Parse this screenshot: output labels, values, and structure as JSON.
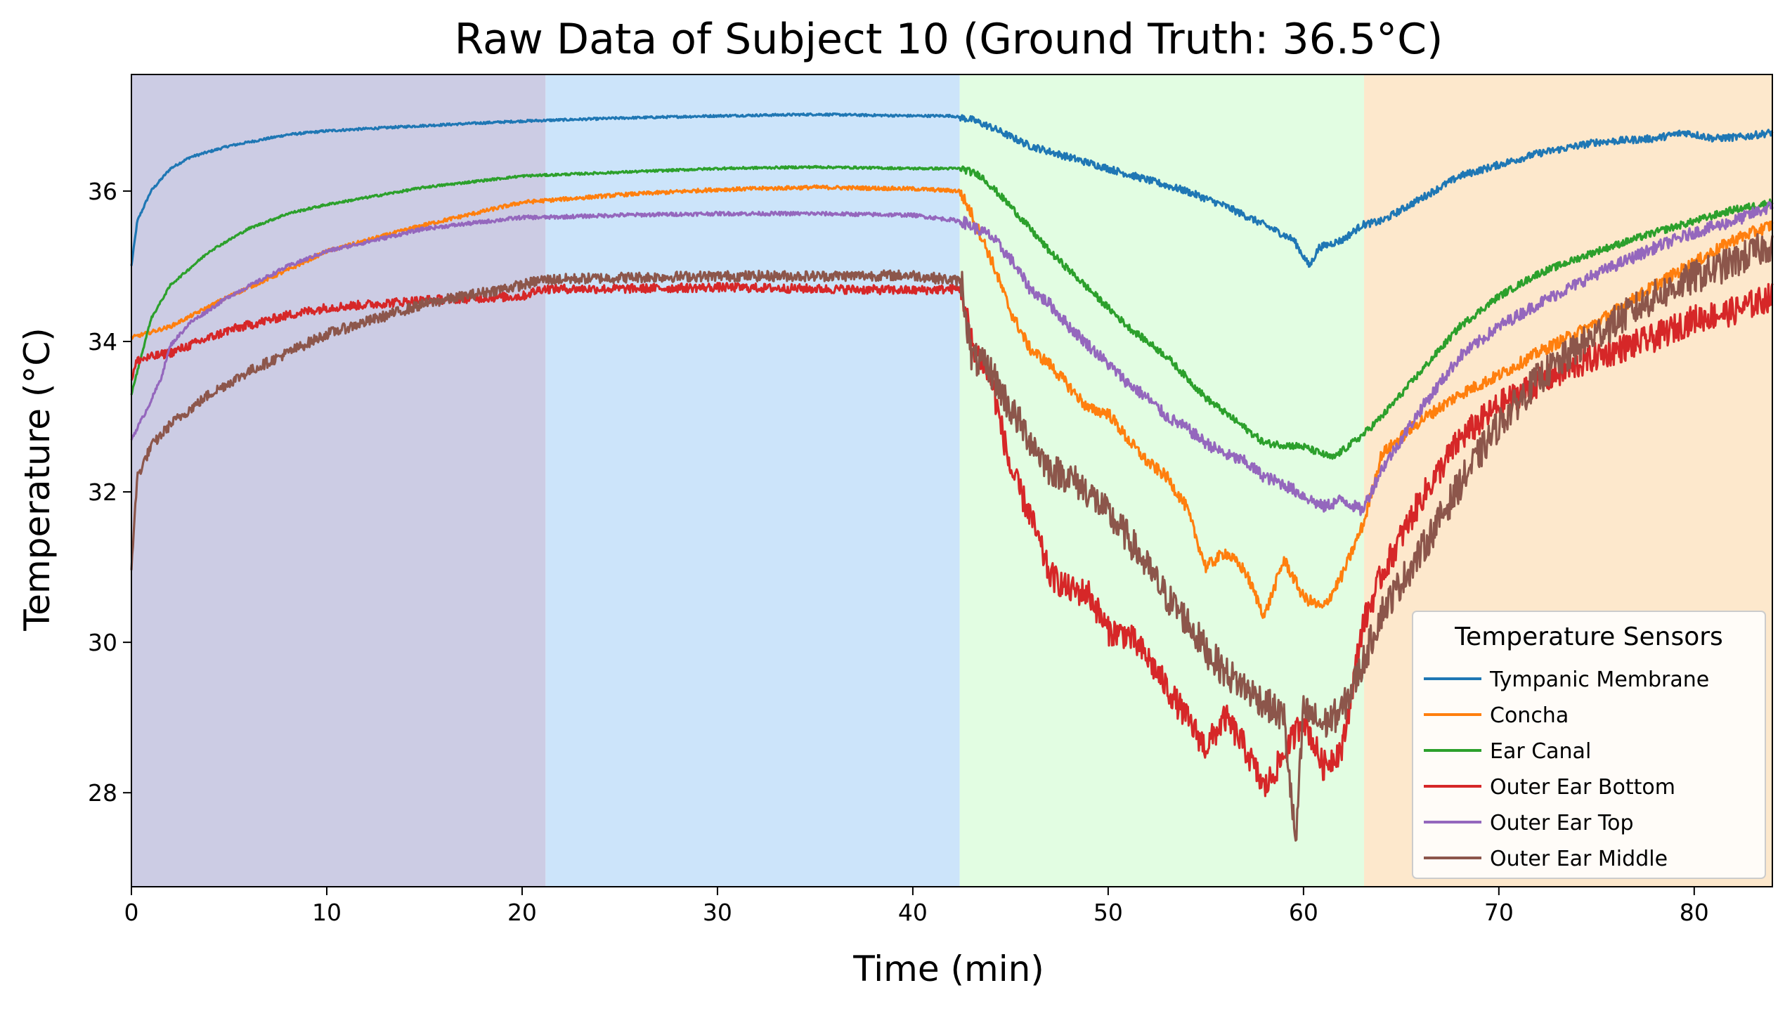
{
  "chart_data": {
    "type": "line",
    "title": "Raw Data of Subject 10 (Ground Truth: 36.5°C)",
    "xlabel": "Time (min)",
    "ylabel": "Temperature (°C)",
    "xlim": [
      0,
      84
    ],
    "ylim": [
      26.75,
      37.55
    ],
    "xticks": [
      0,
      10,
      20,
      30,
      40,
      50,
      60,
      70,
      80
    ],
    "yticks": [
      28,
      30,
      32,
      34,
      36
    ],
    "grid": false,
    "legend": {
      "title": "Temperature Sensors",
      "placement": "lower-right"
    },
    "phases": [
      {
        "start": 0,
        "end": 21.2,
        "color": "#cccce4"
      },
      {
        "start": 21.2,
        "end": 42.4,
        "color": "#cce4fa"
      },
      {
        "start": 42.4,
        "end": 63.1,
        "color": "#e2fde2"
      },
      {
        "start": 63.1,
        "end": 84,
        "color": "#fde8cc"
      }
    ],
    "series": [
      {
        "name": "Tympanic Membrane",
        "color": "#1f77b4",
        "noise": 0.03,
        "points": [
          [
            0,
            35.0
          ],
          [
            0.3,
            35.6
          ],
          [
            1,
            36.0
          ],
          [
            2,
            36.3
          ],
          [
            3,
            36.45
          ],
          [
            5,
            36.6
          ],
          [
            8,
            36.75
          ],
          [
            10,
            36.8
          ],
          [
            15,
            36.87
          ],
          [
            20,
            36.93
          ],
          [
            25,
            36.97
          ],
          [
            30,
            37.0
          ],
          [
            35,
            37.02
          ],
          [
            40,
            37.0
          ],
          [
            42,
            37.0
          ],
          [
            43,
            36.95
          ],
          [
            44,
            36.85
          ],
          [
            46,
            36.6
          ],
          [
            48,
            36.45
          ],
          [
            50,
            36.3
          ],
          [
            52,
            36.15
          ],
          [
            54,
            36.0
          ],
          [
            56,
            35.8
          ],
          [
            58,
            35.55
          ],
          [
            59.5,
            35.35
          ],
          [
            60.3,
            35.0
          ],
          [
            60.8,
            35.25
          ],
          [
            62,
            35.35
          ],
          [
            63,
            35.55
          ],
          [
            64,
            35.6
          ],
          [
            66,
            35.9
          ],
          [
            68,
            36.2
          ],
          [
            70,
            36.35
          ],
          [
            72,
            36.5
          ],
          [
            75,
            36.65
          ],
          [
            78,
            36.7
          ],
          [
            79.5,
            36.78
          ],
          [
            81,
            36.7
          ],
          [
            82.5,
            36.72
          ],
          [
            84,
            36.78
          ]
        ]
      },
      {
        "name": "Concha",
        "color": "#ff7f0e",
        "noise": 0.05,
        "points": [
          [
            0,
            34.05
          ],
          [
            2,
            34.2
          ],
          [
            5,
            34.6
          ],
          [
            8,
            34.95
          ],
          [
            10,
            35.2
          ],
          [
            15,
            35.55
          ],
          [
            20,
            35.85
          ],
          [
            25,
            35.95
          ],
          [
            30,
            36.02
          ],
          [
            35,
            36.05
          ],
          [
            40,
            36.03
          ],
          [
            42.4,
            36.0
          ],
          [
            43,
            35.7
          ],
          [
            44,
            35.1
          ],
          [
            45,
            34.4
          ],
          [
            46,
            33.9
          ],
          [
            47,
            33.7
          ],
          [
            48,
            33.4
          ],
          [
            49,
            33.1
          ],
          [
            50,
            33.05
          ],
          [
            51,
            32.7
          ],
          [
            52,
            32.4
          ],
          [
            53,
            32.2
          ],
          [
            54,
            31.8
          ],
          [
            55,
            31.0
          ],
          [
            56,
            31.2
          ],
          [
            57,
            30.95
          ],
          [
            58,
            30.35
          ],
          [
            59,
            31.1
          ],
          [
            60,
            30.6
          ],
          [
            61,
            30.45
          ],
          [
            62,
            30.9
          ],
          [
            63.1,
            31.6
          ],
          [
            64,
            32.5
          ],
          [
            66,
            32.95
          ],
          [
            68,
            33.3
          ],
          [
            70,
            33.55
          ],
          [
            72,
            33.85
          ],
          [
            75,
            34.25
          ],
          [
            78,
            34.75
          ],
          [
            80,
            35.05
          ],
          [
            82,
            35.35
          ],
          [
            84,
            35.55
          ]
        ]
      },
      {
        "name": "Ear Canal",
        "color": "#2ca02c",
        "noise": 0.03,
        "points": [
          [
            0,
            33.3
          ],
          [
            1,
            34.3
          ],
          [
            2,
            34.75
          ],
          [
            4,
            35.2
          ],
          [
            6,
            35.5
          ],
          [
            8,
            35.7
          ],
          [
            10,
            35.82
          ],
          [
            15,
            36.05
          ],
          [
            20,
            36.2
          ],
          [
            25,
            36.25
          ],
          [
            30,
            36.3
          ],
          [
            35,
            36.32
          ],
          [
            40,
            36.3
          ],
          [
            42.5,
            36.3
          ],
          [
            43.5,
            36.2
          ],
          [
            45,
            35.8
          ],
          [
            47,
            35.2
          ],
          [
            49,
            34.7
          ],
          [
            51,
            34.2
          ],
          [
            53,
            33.8
          ],
          [
            55,
            33.25
          ],
          [
            57,
            32.85
          ],
          [
            58,
            32.65
          ],
          [
            60,
            32.6
          ],
          [
            61.5,
            32.45
          ],
          [
            63,
            32.75
          ],
          [
            64,
            33.0
          ],
          [
            66,
            33.6
          ],
          [
            68,
            34.2
          ],
          [
            70,
            34.6
          ],
          [
            72,
            34.9
          ],
          [
            75,
            35.2
          ],
          [
            78,
            35.45
          ],
          [
            80,
            35.6
          ],
          [
            82,
            35.75
          ],
          [
            84,
            35.85
          ]
        ]
      },
      {
        "name": "Outer Ear Bottom",
        "color": "#d62728",
        "noise": 0.12,
        "points": [
          [
            0,
            33.5
          ],
          [
            0.3,
            33.75
          ],
          [
            2,
            33.85
          ],
          [
            5,
            34.15
          ],
          [
            8,
            34.35
          ],
          [
            10,
            34.45
          ],
          [
            15,
            34.55
          ],
          [
            20,
            34.6
          ],
          [
            21,
            34.7
          ],
          [
            25,
            34.7
          ],
          [
            30,
            34.72
          ],
          [
            35,
            34.7
          ],
          [
            40,
            34.68
          ],
          [
            42.5,
            34.7
          ],
          [
            43,
            34.0
          ],
          [
            44,
            33.5
          ],
          [
            45,
            32.3
          ],
          [
            46,
            31.7
          ],
          [
            47,
            30.9
          ],
          [
            48,
            30.7
          ],
          [
            49,
            30.65
          ],
          [
            50,
            30.15
          ],
          [
            51,
            30.1
          ],
          [
            52,
            29.8
          ],
          [
            53,
            29.4
          ],
          [
            54,
            29.0
          ],
          [
            55,
            28.6
          ],
          [
            56,
            29.0
          ],
          [
            57,
            28.6
          ],
          [
            58,
            28.05
          ],
          [
            59,
            28.5
          ],
          [
            60,
            29.0
          ],
          [
            61,
            28.35
          ],
          [
            62,
            28.6
          ],
          [
            63,
            30.2
          ],
          [
            64,
            30.9
          ],
          [
            66,
            31.9
          ],
          [
            68,
            32.7
          ],
          [
            70,
            33.15
          ],
          [
            72,
            33.45
          ],
          [
            75,
            33.8
          ],
          [
            78,
            34.05
          ],
          [
            80,
            34.3
          ],
          [
            82,
            34.4
          ],
          [
            84,
            34.6
          ]
        ]
      },
      {
        "name": "Outer Ear Top",
        "color": "#9467bd",
        "noise": 0.05,
        "points": [
          [
            0,
            32.7
          ],
          [
            0.8,
            33.1
          ],
          [
            1.5,
            33.5
          ],
          [
            2,
            33.95
          ],
          [
            3,
            34.25
          ],
          [
            5,
            34.6
          ],
          [
            8,
            35.0
          ],
          [
            10,
            35.2
          ],
          [
            15,
            35.5
          ],
          [
            20,
            35.65
          ],
          [
            21.2,
            35.65
          ],
          [
            25,
            35.68
          ],
          [
            30,
            35.7
          ],
          [
            35,
            35.7
          ],
          [
            40,
            35.68
          ],
          [
            42.5,
            35.6
          ],
          [
            44,
            35.4
          ],
          [
            45,
            35.1
          ],
          [
            46,
            34.7
          ],
          [
            47,
            34.5
          ],
          [
            48,
            34.2
          ],
          [
            49,
            33.95
          ],
          [
            50,
            33.7
          ],
          [
            51,
            33.45
          ],
          [
            52,
            33.25
          ],
          [
            53,
            33.0
          ],
          [
            54,
            32.85
          ],
          [
            55,
            32.65
          ],
          [
            56,
            32.5
          ],
          [
            57,
            32.4
          ],
          [
            58,
            32.2
          ],
          [
            59,
            32.1
          ],
          [
            60,
            31.95
          ],
          [
            61,
            31.8
          ],
          [
            62,
            31.9
          ],
          [
            63,
            31.75
          ],
          [
            64,
            32.3
          ],
          [
            66,
            33.1
          ],
          [
            68,
            33.8
          ],
          [
            70,
            34.2
          ],
          [
            72,
            34.5
          ],
          [
            75,
            34.9
          ],
          [
            78,
            35.25
          ],
          [
            80,
            35.45
          ],
          [
            82,
            35.6
          ],
          [
            84,
            35.8
          ]
        ]
      },
      {
        "name": "Outer Ear Middle",
        "color": "#8c564b",
        "noise": 0.14,
        "points": [
          [
            0,
            31.0
          ],
          [
            0.3,
            32.2
          ],
          [
            1,
            32.6
          ],
          [
            2,
            32.9
          ],
          [
            4,
            33.3
          ],
          [
            6,
            33.6
          ],
          [
            8,
            33.85
          ],
          [
            10,
            34.1
          ],
          [
            15,
            34.5
          ],
          [
            20,
            34.75
          ],
          [
            21,
            34.82
          ],
          [
            25,
            34.85
          ],
          [
            30,
            34.87
          ],
          [
            35,
            34.87
          ],
          [
            40,
            34.88
          ],
          [
            42.5,
            34.8
          ],
          [
            43,
            33.8
          ],
          [
            44,
            33.6
          ],
          [
            45,
            33.1
          ],
          [
            46,
            32.7
          ],
          [
            47,
            32.3
          ],
          [
            48,
            32.2
          ],
          [
            49,
            32.0
          ],
          [
            50,
            31.7
          ],
          [
            51,
            31.4
          ],
          [
            52,
            31.0
          ],
          [
            53,
            30.6
          ],
          [
            54,
            30.3
          ],
          [
            55,
            29.9
          ],
          [
            56,
            29.6
          ],
          [
            57,
            29.4
          ],
          [
            58,
            29.2
          ],
          [
            59,
            29.0
          ],
          [
            59.6,
            27.3
          ],
          [
            60,
            29.1
          ],
          [
            61,
            28.9
          ],
          [
            62,
            29.1
          ],
          [
            63,
            29.7
          ],
          [
            64,
            30.4
          ],
          [
            66,
            31.2
          ],
          [
            68,
            32.1
          ],
          [
            70,
            32.9
          ],
          [
            72,
            33.5
          ],
          [
            75,
            34.1
          ],
          [
            78,
            34.6
          ],
          [
            80,
            34.85
          ],
          [
            82,
            35.05
          ],
          [
            84,
            35.3
          ]
        ]
      }
    ]
  }
}
